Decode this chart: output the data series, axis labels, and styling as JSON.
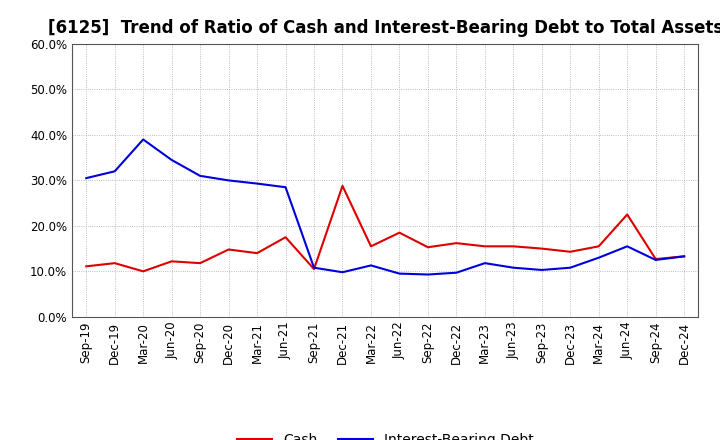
{
  "title": "[6125]  Trend of Ratio of Cash and Interest-Bearing Debt to Total Assets",
  "x_labels": [
    "Sep-19",
    "Dec-19",
    "Mar-20",
    "Jun-20",
    "Sep-20",
    "Dec-20",
    "Mar-21",
    "Jun-21",
    "Sep-21",
    "Dec-21",
    "Mar-22",
    "Jun-22",
    "Sep-22",
    "Dec-22",
    "Mar-23",
    "Jun-23",
    "Sep-23",
    "Dec-23",
    "Mar-24",
    "Jun-24",
    "Sep-24",
    "Dec-24"
  ],
  "cash": [
    0.111,
    0.118,
    0.1,
    0.122,
    0.118,
    0.148,
    0.14,
    0.175,
    0.105,
    0.288,
    0.155,
    0.185,
    0.153,
    0.162,
    0.155,
    0.155,
    0.15,
    0.143,
    0.155,
    0.225,
    0.127,
    0.133
  ],
  "interest_bearing_debt": [
    0.305,
    0.32,
    0.39,
    0.345,
    0.31,
    0.3,
    0.293,
    0.285,
    0.108,
    0.098,
    0.113,
    0.095,
    0.093,
    0.097,
    0.118,
    0.108,
    0.103,
    0.108,
    0.13,
    0.155,
    0.125,
    0.133
  ],
  "cash_color": "#dd0000",
  "debt_color": "#0000dd",
  "background_color": "#ffffff",
  "grid_color": "#aaaaaa",
  "ylim": [
    0.0,
    0.6
  ],
  "yticks": [
    0.0,
    0.1,
    0.2,
    0.3,
    0.4,
    0.5,
    0.6
  ],
  "legend_cash": "Cash",
  "legend_debt": "Interest-Bearing Debt",
  "title_fontsize": 12,
  "tick_fontsize": 8.5,
  "legend_fontsize": 10
}
